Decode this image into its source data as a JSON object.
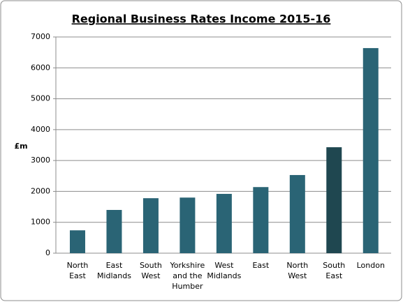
{
  "chart_data": {
    "type": "bar",
    "title": "Regional Business Rates Income 2015-16",
    "y_label": "£m",
    "categories": [
      [
        "North",
        "East"
      ],
      [
        "East",
        "Midlands"
      ],
      [
        "South",
        "West"
      ],
      [
        "Yorkshire",
        "and the",
        "Humber"
      ],
      [
        "West",
        "Midlands"
      ],
      [
        "East"
      ],
      [
        "North",
        "West"
      ],
      [
        "South",
        "East"
      ],
      [
        "London"
      ]
    ],
    "values": [
      740,
      1400,
      1780,
      1800,
      1920,
      2140,
      2530,
      3430,
      6640
    ],
    "colors": [
      "#2a6475",
      "#2a6475",
      "#2a6475",
      "#2a6475",
      "#2a6475",
      "#2a6475",
      "#2a6475",
      "#1f4750",
      "#2a6475"
    ],
    "ylim": [
      0,
      7000
    ],
    "yticks": [
      0,
      1000,
      2000,
      3000,
      4000,
      5000,
      6000,
      7000
    ],
    "grid": true
  }
}
